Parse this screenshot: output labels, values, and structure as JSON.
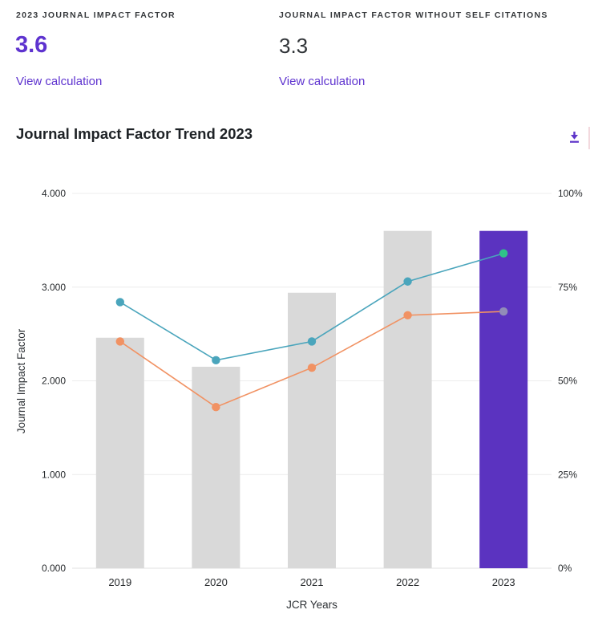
{
  "metrics": {
    "jif": {
      "label": "2023 JOURNAL IMPACT FACTOR",
      "value": "3.6",
      "link": "View calculation"
    },
    "no_self": {
      "label": "JOURNAL IMPACT FACTOR WITHOUT SELF CITATIONS",
      "value": "3.3",
      "link": "View calculation"
    }
  },
  "section": {
    "title": "Journal Impact Factor Trend 2023"
  },
  "colors": {
    "accent_purple": "#5e33cf",
    "bar_default": "#d9d9d9",
    "bar_highlight": "#5b33c0",
    "teal_line": "#4aa5bc",
    "orange_line": "#f19263",
    "teal_last_point": "#2fc289",
    "orange_last_point": "#918cb8",
    "gridline": "#ececec"
  },
  "chart_data": {
    "type": "bar",
    "subtype": "bar+line combo, dual axis",
    "title": "Journal Impact Factor Trend 2023",
    "categories": [
      "2019",
      "2020",
      "2021",
      "2022",
      "2023"
    ],
    "bars": {
      "name": "Journal Impact Factor (bars, left axis)",
      "values": [
        2.46,
        2.15,
        2.94,
        3.6,
        3.6
      ],
      "colors": {
        "default": "#d9d9d9",
        "highlight": "#5b33c0",
        "highlight_category": "2023"
      }
    },
    "series": [
      {
        "name": "teal-line",
        "axis": "right",
        "unit": "%",
        "values": [
          71,
          55.5,
          60.5,
          76.5,
          84
        ],
        "color": "#4aa5bc",
        "last_point_color": "#2fc289"
      },
      {
        "name": "orange-line",
        "axis": "right",
        "unit": "%",
        "values": [
          60.5,
          43,
          53.5,
          67.5,
          68.5
        ],
        "color": "#f19263",
        "last_point_color": "#918cb8"
      }
    ],
    "left_axis": {
      "label": "Journal Impact Factor",
      "ticks": [
        "0.000",
        "1.000",
        "2.000",
        "3.000",
        "4.000"
      ],
      "range": [
        0,
        4
      ]
    },
    "right_axis": {
      "ticks": [
        "0%",
        "25%",
        "50%",
        "75%",
        "100%"
      ],
      "range": [
        0,
        100
      ]
    },
    "x_axis": {
      "label": "JCR Years"
    },
    "grid": "horizontal gridlines only",
    "legend": "none visible"
  }
}
